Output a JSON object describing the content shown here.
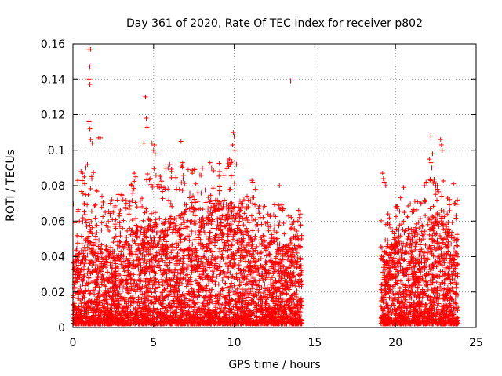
{
  "chart_data": {
    "type": "scatter",
    "title": "Day 361 of 2020, Rate Of TEC Index for receiver p802",
    "xlabel": "GPS time / hours",
    "ylabel": "ROTI / TECUs",
    "xlim": [
      0,
      25
    ],
    "ylim": [
      0,
      0.16
    ],
    "xticks": [
      0,
      5,
      10,
      15,
      20,
      25
    ],
    "yticks": [
      0,
      0.02,
      0.04,
      0.06,
      0.08,
      0.1,
      0.12,
      0.14,
      0.16
    ],
    "xtick_labels": [
      "0",
      "5",
      "10",
      "15",
      "20",
      "25"
    ],
    "ytick_labels": [
      "0",
      "0.02",
      "0.04",
      "0.06",
      "0.08",
      "0.1",
      "0.12",
      "0.14",
      "0.16"
    ],
    "grid": true,
    "marker": "plus",
    "color": "#ff0000",
    "data_ranges_hours": [
      [
        0,
        14.2
      ],
      [
        19.1,
        23.9
      ]
    ],
    "series": [
      {
        "marker": "plus",
        "color": "#ff0000",
        "points": [
          [
            1.0,
            0.157
          ],
          [
            1.1,
            0.157
          ],
          [
            1.05,
            0.147
          ],
          [
            1.0,
            0.14
          ],
          [
            1.05,
            0.137
          ],
          [
            4.5,
            0.13
          ],
          [
            13.5,
            0.139
          ],
          [
            4.55,
            0.118
          ],
          [
            4.6,
            0.113
          ],
          [
            1.0,
            0.116
          ],
          [
            1.05,
            0.112
          ],
          [
            1.6,
            0.107
          ],
          [
            1.7,
            0.107
          ],
          [
            1.1,
            0.106
          ],
          [
            1.2,
            0.104
          ],
          [
            4.4,
            0.104
          ],
          [
            4.9,
            0.104
          ],
          [
            5.05,
            0.103
          ],
          [
            5.0,
            0.1
          ],
          [
            5.1,
            0.098
          ],
          [
            6.7,
            0.105
          ],
          [
            9.95,
            0.11
          ],
          [
            10.0,
            0.108
          ],
          [
            9.9,
            0.103
          ],
          [
            10.05,
            0.1
          ],
          [
            22.2,
            0.108
          ],
          [
            22.8,
            0.106
          ],
          [
            22.85,
            0.103
          ],
          [
            22.9,
            0.1
          ],
          [
            22.3,
            0.098
          ],
          [
            22.1,
            0.095
          ],
          [
            22.2,
            0.093
          ],
          [
            22.25,
            0.09
          ],
          [
            19.2,
            0.087
          ],
          [
            19.25,
            0.084
          ],
          [
            19.3,
            0.082
          ],
          [
            19.4,
            0.08
          ],
          [
            11.1,
            0.083
          ],
          [
            11.15,
            0.082
          ],
          [
            12.8,
            0.08
          ],
          [
            0.3,
            0.083
          ],
          [
            0.5,
            0.088
          ],
          [
            0.6,
            0.087
          ],
          [
            0.7,
            0.085
          ],
          [
            0.8,
            0.09
          ],
          [
            0.9,
            0.092
          ],
          [
            3.8,
            0.087
          ],
          [
            3.9,
            0.085
          ],
          [
            5.9,
            0.09
          ],
          [
            6.0,
            0.092
          ],
          [
            6.1,
            0.088
          ],
          [
            6.8,
            0.093
          ],
          [
            7.4,
            0.087
          ],
          [
            8.5,
            0.093
          ],
          [
            8.6,
            0.09
          ],
          [
            9.1,
            0.088
          ],
          [
            9.7,
            0.095
          ],
          [
            9.8,
            0.093
          ],
          [
            20.5,
            0.079
          ],
          [
            21.8,
            0.08
          ],
          [
            21.9,
            0.082
          ],
          [
            22.5,
            0.08
          ],
          [
            22.6,
            0.078
          ],
          [
            23.6,
            0.081
          ],
          [
            23.7,
            0.07
          ],
          [
            14.0,
            0.066
          ],
          [
            14.1,
            0.064
          ],
          [
            14.05,
            0.062
          ],
          [
            13.95,
            0.06
          ],
          [
            13.0,
            0.066
          ],
          [
            12.1,
            0.064
          ],
          [
            11.8,
            0.062
          ],
          [
            10.6,
            0.072
          ],
          [
            10.8,
            0.074
          ],
          [
            10.5,
            0.068
          ],
          [
            3.1,
            0.072
          ],
          [
            3.3,
            0.07
          ],
          [
            2.8,
            0.075
          ],
          [
            2.4,
            0.072
          ],
          [
            1.8,
            0.074
          ],
          [
            2.0,
            0.065
          ]
        ]
      }
    ],
    "density_profile": [
      {
        "x0": 0.0,
        "x1": 0.5,
        "dense_max": 0.04,
        "sparse_max": 0.07
      },
      {
        "x0": 0.5,
        "x1": 1.5,
        "dense_max": 0.06,
        "sparse_max": 0.09
      },
      {
        "x0": 1.5,
        "x1": 2.5,
        "dense_max": 0.045,
        "sparse_max": 0.075
      },
      {
        "x0": 2.5,
        "x1": 3.5,
        "dense_max": 0.05,
        "sparse_max": 0.075
      },
      {
        "x0": 3.5,
        "x1": 4.5,
        "dense_max": 0.055,
        "sparse_max": 0.085
      },
      {
        "x0": 4.5,
        "x1": 5.5,
        "dense_max": 0.06,
        "sparse_max": 0.09
      },
      {
        "x0": 5.5,
        "x1": 6.5,
        "dense_max": 0.06,
        "sparse_max": 0.09
      },
      {
        "x0": 6.5,
        "x1": 7.5,
        "dense_max": 0.065,
        "sparse_max": 0.092
      },
      {
        "x0": 7.5,
        "x1": 8.5,
        "dense_max": 0.065,
        "sparse_max": 0.09
      },
      {
        "x0": 8.5,
        "x1": 9.5,
        "dense_max": 0.07,
        "sparse_max": 0.093
      },
      {
        "x0": 9.5,
        "x1": 10.5,
        "dense_max": 0.07,
        "sparse_max": 0.095
      },
      {
        "x0": 10.5,
        "x1": 11.5,
        "dense_max": 0.06,
        "sparse_max": 0.08
      },
      {
        "x0": 11.5,
        "x1": 12.5,
        "dense_max": 0.05,
        "sparse_max": 0.07
      },
      {
        "x0": 12.5,
        "x1": 13.5,
        "dense_max": 0.045,
        "sparse_max": 0.07
      },
      {
        "x0": 13.5,
        "x1": 14.2,
        "dense_max": 0.05,
        "sparse_max": 0.066
      },
      {
        "x0": 19.1,
        "x1": 20.0,
        "dense_max": 0.045,
        "sparse_max": 0.065
      },
      {
        "x0": 20.0,
        "x1": 21.0,
        "dense_max": 0.055,
        "sparse_max": 0.075
      },
      {
        "x0": 21.0,
        "x1": 22.0,
        "dense_max": 0.055,
        "sparse_max": 0.075
      },
      {
        "x0": 22.0,
        "x1": 23.0,
        "dense_max": 0.065,
        "sparse_max": 0.085
      },
      {
        "x0": 23.0,
        "x1": 23.9,
        "dense_max": 0.055,
        "sparse_max": 0.075
      }
    ]
  }
}
